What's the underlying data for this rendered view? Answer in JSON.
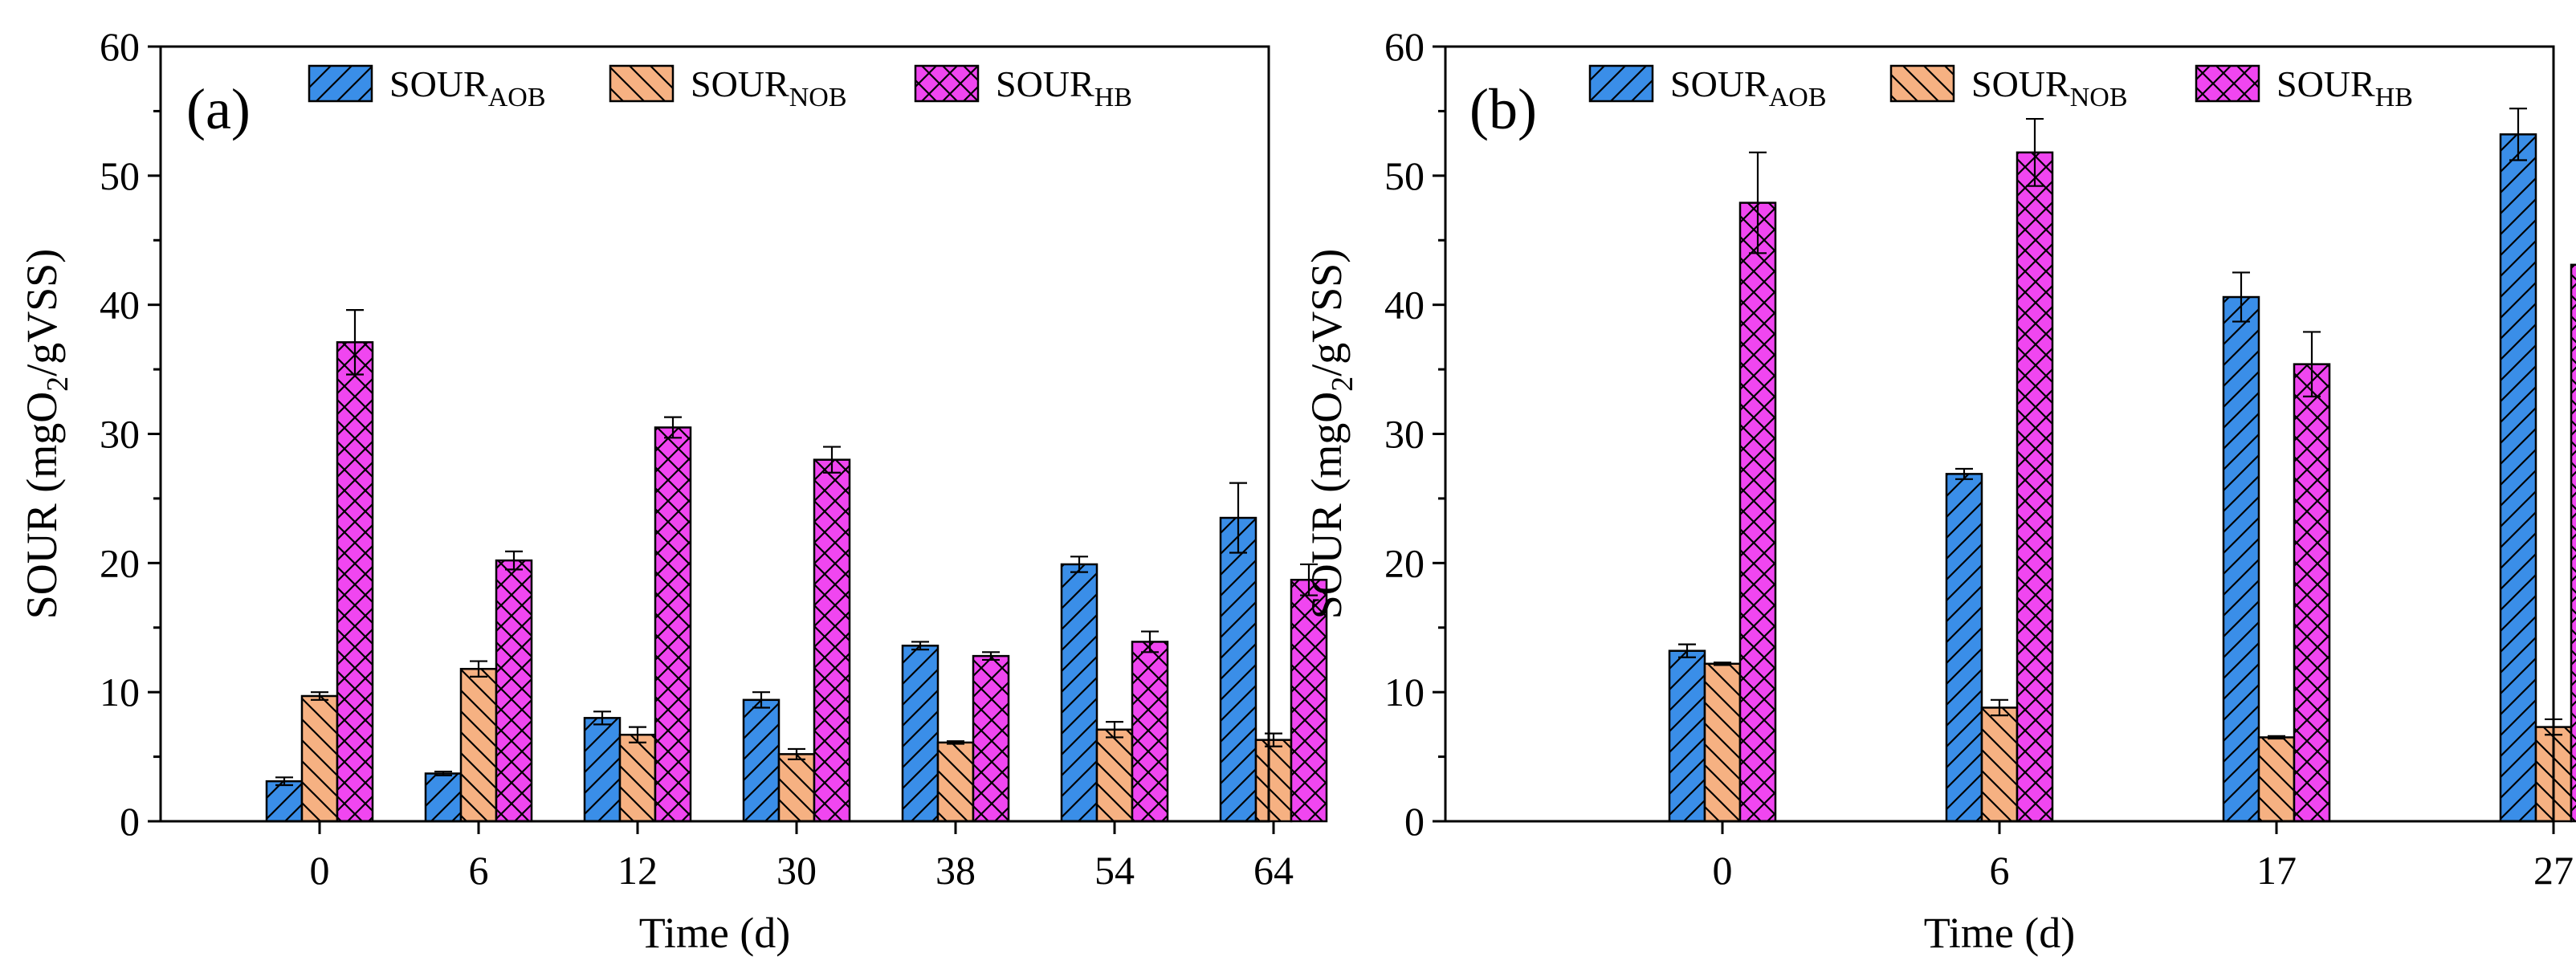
{
  "chart_data": [
    {
      "type": "bar",
      "panel_label": "(a)",
      "xlabel": "Time (d)",
      "ylabel": {
        "prefix": "SOUR (mgO",
        "sub": "2",
        "suffix": "/gVSS)"
      },
      "ylim": [
        0,
        60
      ],
      "yticks": [
        0,
        10,
        20,
        30,
        40,
        50,
        60
      ],
      "grid": false,
      "legend_position": "top",
      "categories": [
        "0",
        "6",
        "12",
        "30",
        "38",
        "54",
        "64"
      ],
      "series": [
        {
          "name": "SOUR",
          "name_sub": "AOB",
          "color": "#3a8ee8",
          "pattern": "diagonal-forward",
          "values": [
            3.1,
            3.7,
            8.0,
            9.4,
            13.6,
            19.9,
            23.5
          ],
          "errors": [
            0.3,
            0.15,
            0.5,
            0.6,
            0.3,
            0.6,
            2.7
          ]
        },
        {
          "name": "SOUR",
          "name_sub": "NOB",
          "color": "#f6b182",
          "pattern": "diagonal-back",
          "values": [
            9.7,
            11.8,
            6.7,
            5.2,
            6.1,
            7.1,
            6.3
          ],
          "errors": [
            0.3,
            0.6,
            0.6,
            0.4,
            0.1,
            0.6,
            0.5
          ]
        },
        {
          "name": "SOUR",
          "name_sub": "HB",
          "color": "#f046f0",
          "pattern": "crosshatch",
          "values": [
            37.1,
            20.2,
            30.5,
            28.0,
            12.8,
            13.9,
            18.7
          ],
          "errors": [
            2.5,
            0.7,
            0.8,
            1.0,
            0.3,
            0.8,
            1.2
          ]
        }
      ]
    },
    {
      "type": "bar",
      "panel_label": "(b)",
      "xlabel": "Time (d)",
      "ylabel": {
        "prefix": "SOUR (mgO",
        "sub": "2",
        "suffix": "/gVSS)"
      },
      "ylim": [
        0,
        60
      ],
      "yticks": [
        0,
        10,
        20,
        30,
        40,
        50,
        60
      ],
      "grid": false,
      "legend_position": "top",
      "categories": [
        "0",
        "6",
        "17",
        "27"
      ],
      "series": [
        {
          "name": "SOUR",
          "name_sub": "AOB",
          "color": "#3a8ee8",
          "pattern": "diagonal-forward",
          "values": [
            13.2,
            26.9,
            40.6,
            53.2
          ],
          "errors": [
            0.5,
            0.4,
            1.9,
            2.0
          ]
        },
        {
          "name": "SOUR",
          "name_sub": "NOB",
          "color": "#f6b182",
          "pattern": "diagonal-back",
          "values": [
            12.2,
            8.8,
            6.5,
            7.3
          ],
          "errors": [
            0.1,
            0.6,
            0.1,
            0.6
          ]
        },
        {
          "name": "SOUR",
          "name_sub": "HB",
          "color": "#f046f0",
          "pattern": "crosshatch",
          "values": [
            47.9,
            51.8,
            35.4,
            43.1
          ],
          "errors": [
            3.9,
            2.6,
            2.5,
            2.6
          ]
        }
      ]
    }
  ]
}
